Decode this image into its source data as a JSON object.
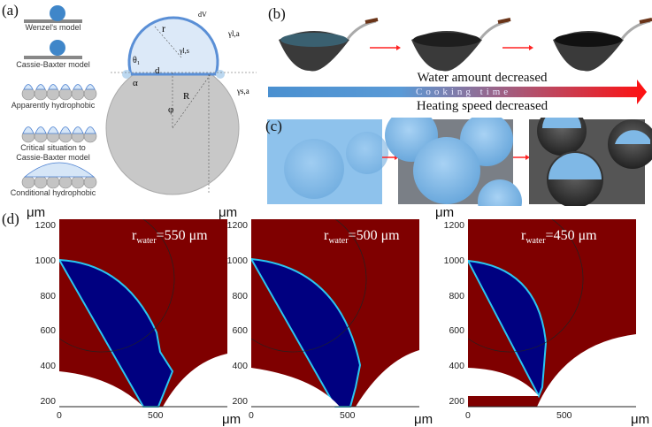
{
  "panels": {
    "a": {
      "label": "(a)",
      "models": [
        "Wenzel's model",
        "Cassie-Baxter model",
        "Apparently hydrophobic",
        "Critical situation to",
        "Cassie-Baxter model",
        "Conditional hydrophobic"
      ],
      "symbols": {
        "r": "r",
        "d": "d",
        "R": "R",
        "phi": "φ",
        "alpha": "α",
        "theta1": "θ₁",
        "dV": "dV",
        "gamma_la": "γl,a",
        "gamma_ls": "γl,s",
        "gamma_sa": "γs,a"
      }
    },
    "b": {
      "label": "(b)",
      "top_text": "Water amount decreased",
      "arrow_text": "Cooking time",
      "bottom_text": "Heating speed decreased"
    },
    "c": {
      "label": "(c)"
    },
    "d": {
      "label": "(d)",
      "unit": "μm",
      "y_ticks": [
        "1200",
        "1000",
        "800",
        "600",
        "400",
        "200"
      ],
      "x_ticks": [
        "0",
        "500"
      ],
      "plots": [
        {
          "r_label": "r",
          "r_sub": "water",
          "r_value": "=550 μm"
        },
        {
          "r_label": "r",
          "r_sub": "water",
          "r_value": "=500 μm"
        },
        {
          "r_label": "r",
          "r_sub": "water",
          "r_value": "=450 μm"
        }
      ]
    }
  },
  "colors": {
    "water": "#000080",
    "air": "#7f0000",
    "arrow_start": "#4a90d0",
    "arrow_end": "#ff1010"
  }
}
